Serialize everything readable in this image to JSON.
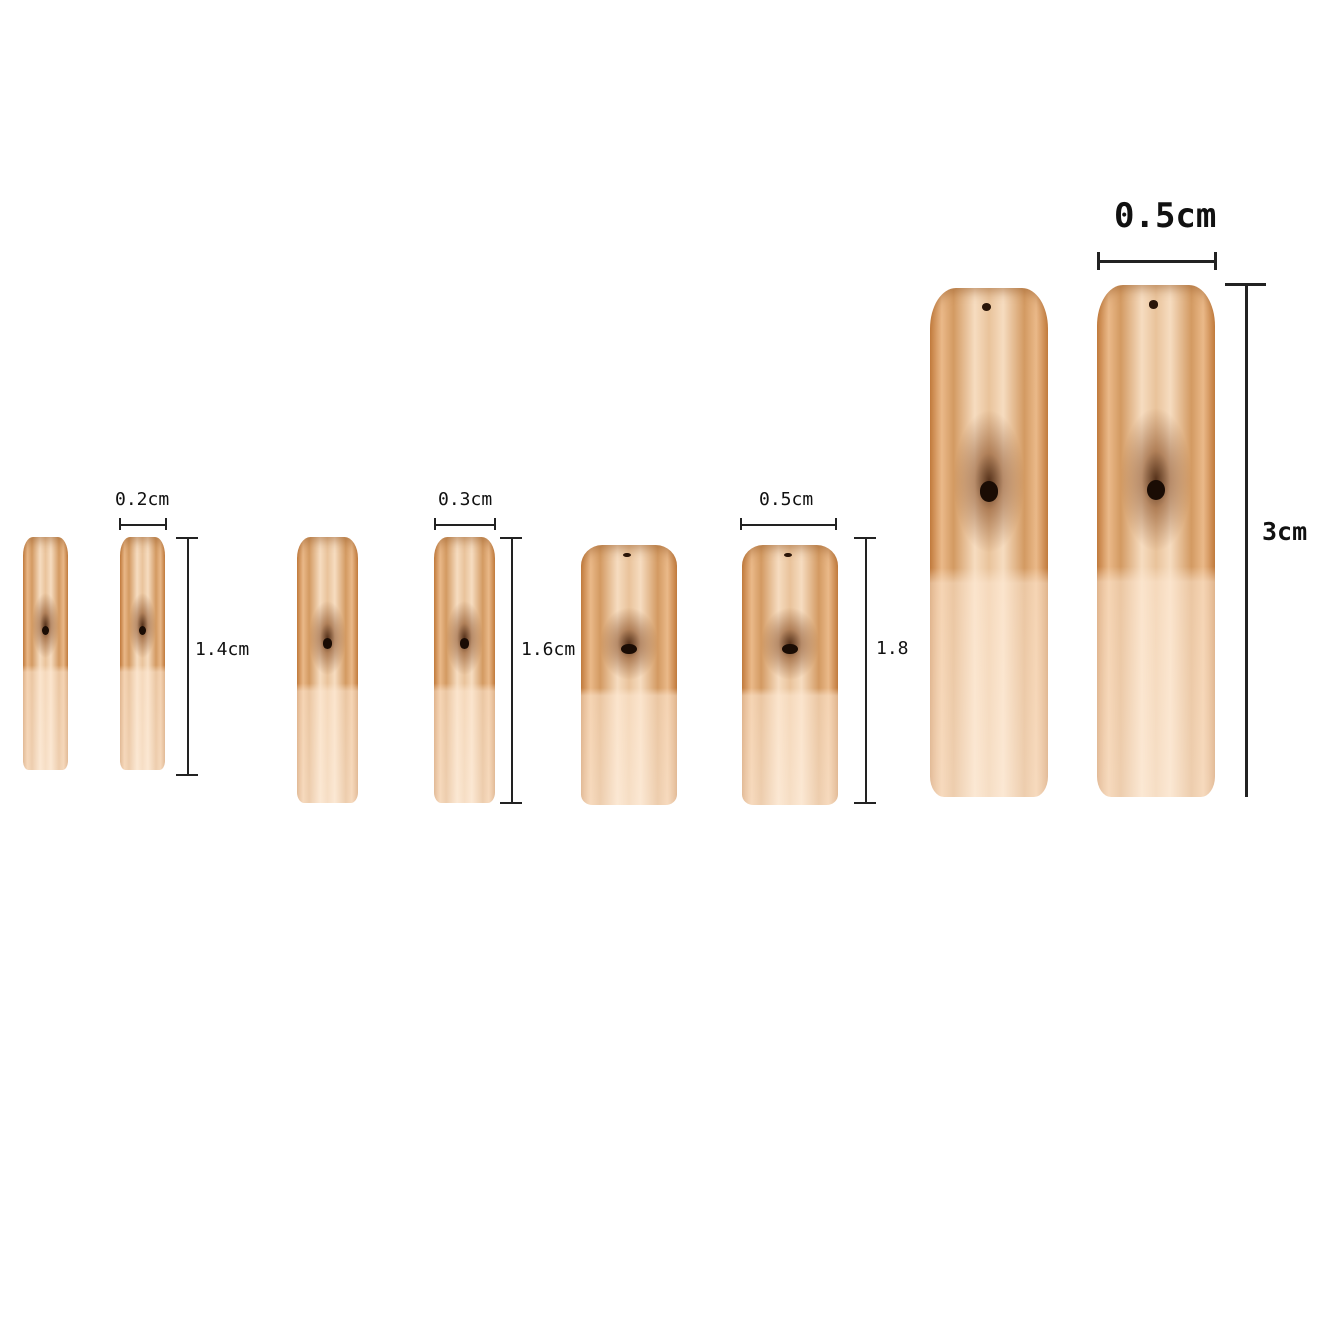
{
  "colors": {
    "gold_light": "#f6dcc0",
    "gold_dark": "#c47d3e",
    "line": "#222222"
  },
  "sizes": [
    {
      "width_label": "0.2cm",
      "height_label": "1.4cm"
    },
    {
      "width_label": "0.3cm",
      "height_label": "1.6cm"
    },
    {
      "width_label": "0.5cm",
      "height_label": "1.8"
    },
    {
      "width_label": "0.5cm",
      "height_label": "3cm"
    }
  ]
}
